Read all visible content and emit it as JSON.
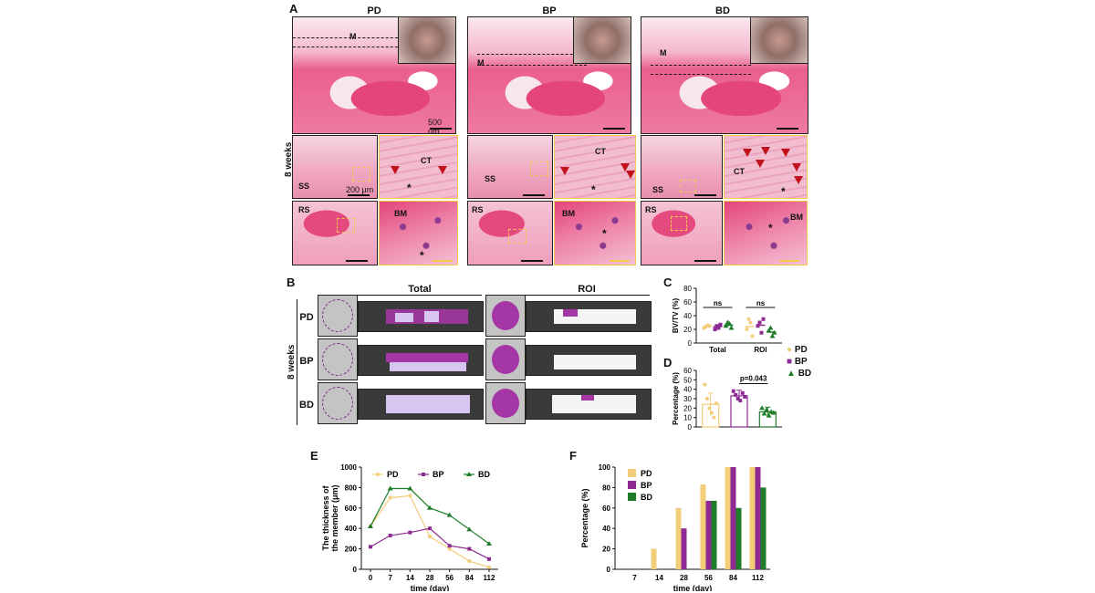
{
  "panel_labels": {
    "a": "A",
    "b": "B",
    "c": "C",
    "d": "D",
    "e": "E",
    "f": "F"
  },
  "panel_a": {
    "groups": [
      "PD",
      "BP",
      "BD"
    ],
    "timepoint": "8 weeks",
    "tags": {
      "m": "M",
      "ss": "SS",
      "ct": "CT",
      "rs": "RS",
      "bm": "BM",
      "star": "*"
    },
    "scale_500": "500 μm",
    "scale_200": "200 μm"
  },
  "panel_b": {
    "timepoint": "8 weeks",
    "col_total": "Total",
    "col_roi": "ROI",
    "rows": [
      "PD",
      "BP",
      "BD"
    ]
  },
  "legend": {
    "items": [
      {
        "name": "PD",
        "color": "#f2cd7a"
      },
      {
        "name": "BP",
        "color": "#8e2a91"
      },
      {
        "name": "BD",
        "color": "#1f7d2a"
      }
    ]
  },
  "chart_data": [
    {
      "id": "C",
      "type": "scatter",
      "ylabel": "BV/TV (%)",
      "ylim": [
        0,
        80
      ],
      "yticks": [
        "0",
        "20",
        "40",
        "60",
        "80"
      ],
      "categories": [
        "Total",
        "ROI"
      ],
      "annotations": [
        "ns",
        "ns"
      ],
      "series": [
        {
          "name": "PD",
          "values": [
            [
              22,
              24,
              26,
              25
            ],
            [
              20,
              35,
              30,
              10
            ]
          ]
        },
        {
          "name": "BP",
          "values": [
            [
              20,
              25,
              22,
              27
            ],
            [
              25,
              30,
              15,
              35
            ]
          ]
        },
        {
          "name": "BD",
          "values": [
            [
              25,
              30,
              28,
              22
            ],
            [
              18,
              22,
              10,
              15
            ]
          ]
        }
      ],
      "means": [
        [
          24,
          24,
          26
        ],
        [
          24,
          26,
          16
        ]
      ]
    },
    {
      "id": "D",
      "type": "bar",
      "ylabel": "Percentage (%)",
      "ylim": [
        0,
        60
      ],
      "yticks": [
        "0",
        "10",
        "20",
        "30",
        "40",
        "50",
        "60"
      ],
      "categories": [
        "PD",
        "BP",
        "BD"
      ],
      "values": [
        24,
        33,
        16
      ],
      "errors": [
        12,
        6,
        5
      ],
      "points": [
        [
          45,
          30,
          20,
          15,
          10,
          25
        ],
        [
          38,
          34,
          30,
          28,
          36,
          32
        ],
        [
          20,
          14,
          18,
          12,
          16,
          15
        ]
      ],
      "annotation": "p=0.043"
    },
    {
      "id": "E",
      "type": "line",
      "ylabel": "The thickness of the member (μm)",
      "xlabel": "time (day)",
      "x": [
        "0",
        "7",
        "14",
        "28",
        "56",
        "84",
        "112"
      ],
      "ylim": [
        0,
        1000
      ],
      "yticks": [
        "0",
        "200",
        "400",
        "600",
        "800",
        "1000"
      ],
      "series": [
        {
          "name": "PD",
          "values": [
            420,
            700,
            720,
            320,
            200,
            80,
            20
          ]
        },
        {
          "name": "BP",
          "values": [
            220,
            330,
            360,
            400,
            230,
            200,
            100
          ]
        },
        {
          "name": "BD",
          "values": [
            420,
            790,
            790,
            600,
            530,
            390,
            250
          ]
        }
      ]
    },
    {
      "id": "F",
      "type": "bar",
      "ylabel": "Percentage (%)",
      "xlabel": "time (day)",
      "categories": [
        "7",
        "14",
        "28",
        "56",
        "84",
        "112"
      ],
      "ylim": [
        0,
        100
      ],
      "yticks": [
        "0",
        "20",
        "40",
        "60",
        "80",
        "100"
      ],
      "series": [
        {
          "name": "PD",
          "values": [
            0,
            20,
            60,
            83,
            100,
            100
          ]
        },
        {
          "name": "BP",
          "values": [
            0,
            0,
            40,
            67,
            100,
            100
          ]
        },
        {
          "name": "BD",
          "values": [
            0,
            0,
            0,
            67,
            60,
            80
          ]
        }
      ]
    }
  ]
}
